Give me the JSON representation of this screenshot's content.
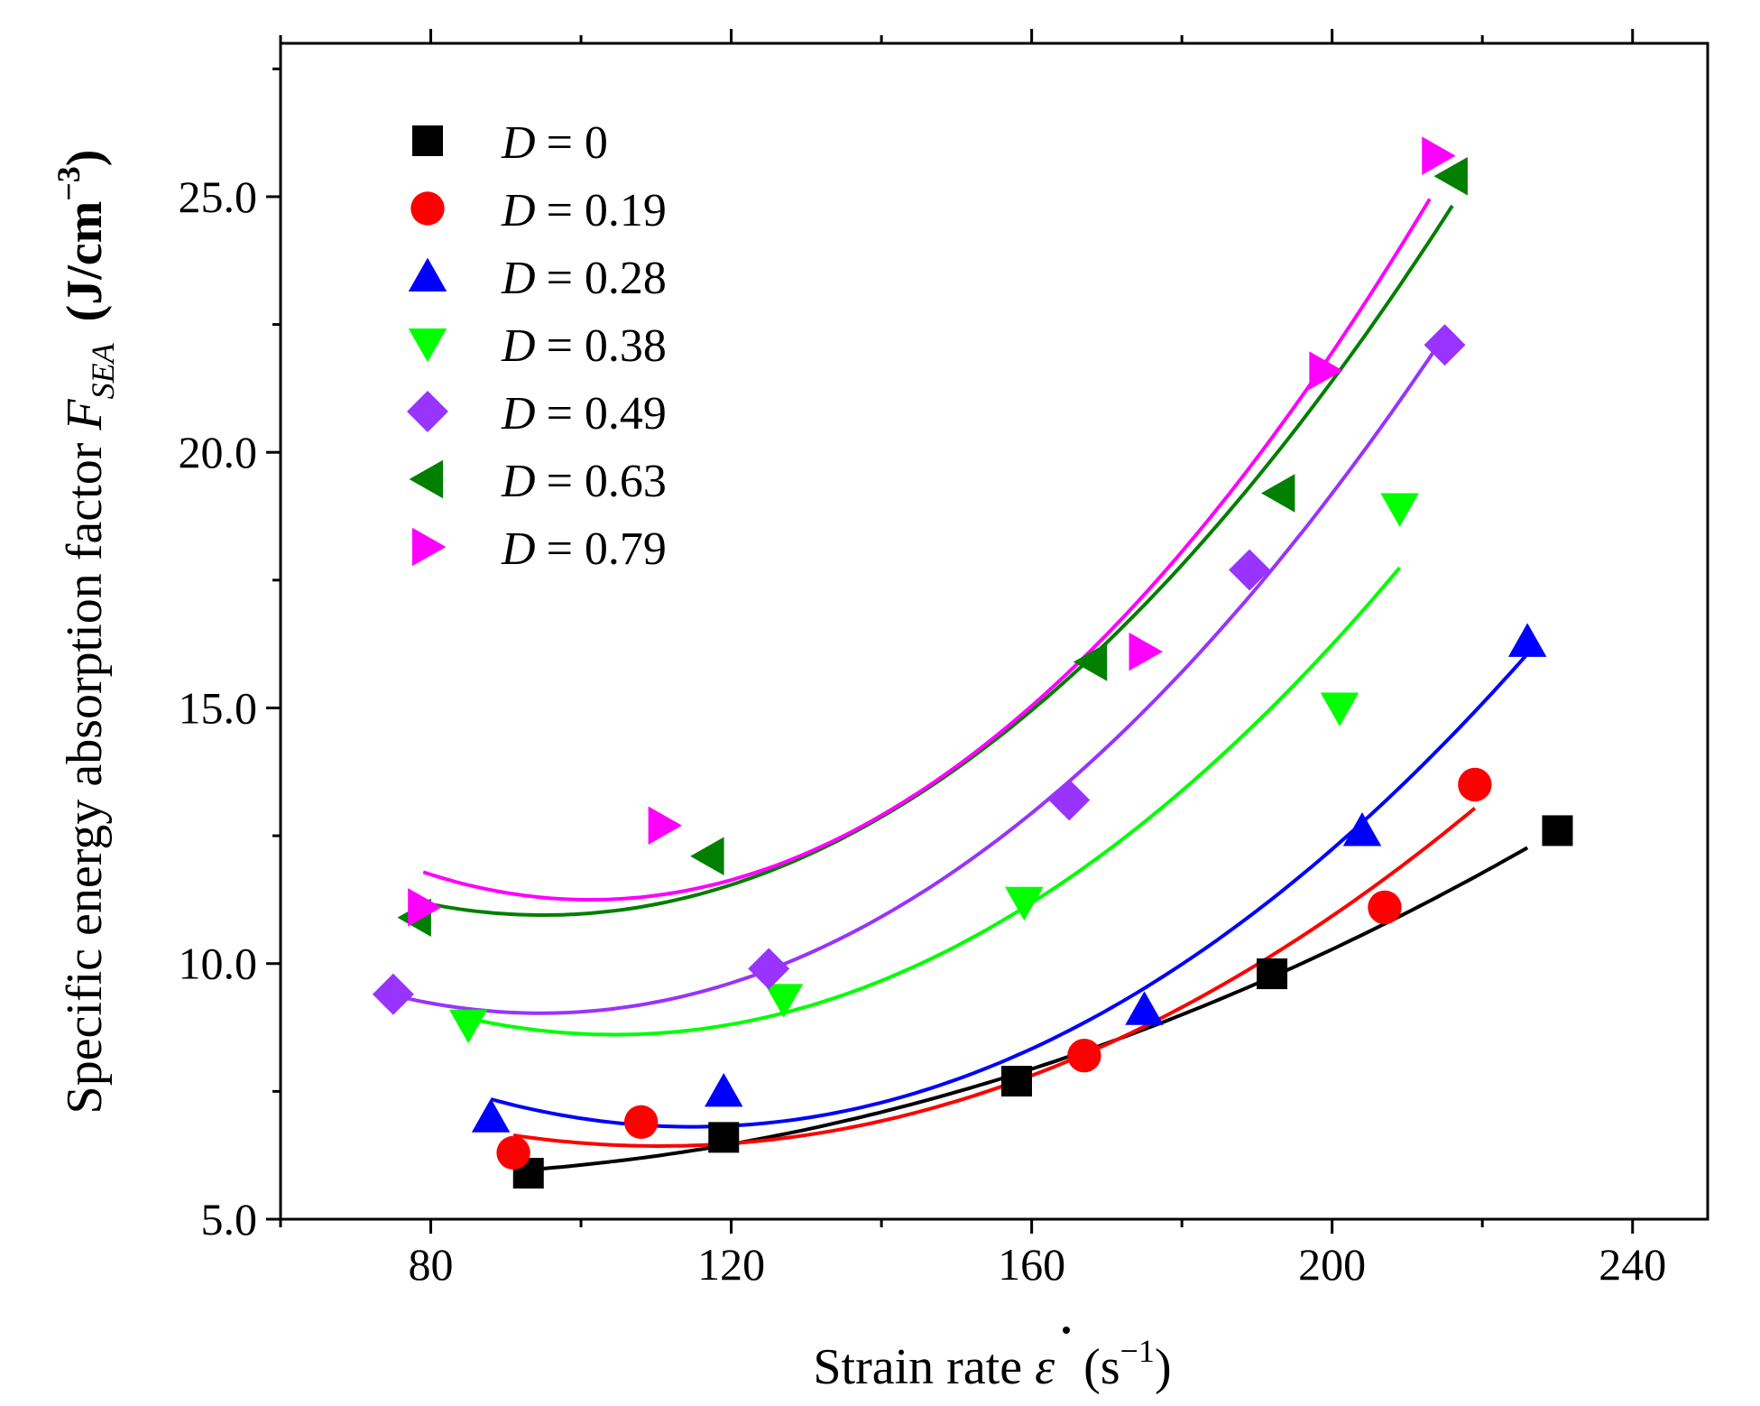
{
  "chart_data": {
    "type": "scatter",
    "xlabel_main": "Strain rate",
    "xlabel_symbol": "ε",
    "xlabel_unit_open": "(s",
    "xlabel_unit_exp": "−1",
    "xlabel_unit_close": ")",
    "ylabel_main": "Specific energy absorption factor",
    "ylabel_symbol": "F",
    "ylabel_subscript": "SEA",
    "ylabel_unit_open": "(J/cm",
    "ylabel_unit_exp": "−3",
    "ylabel_unit_close": ")",
    "xlim": [
      60,
      250
    ],
    "ylim": [
      5.0,
      28.0
    ],
    "xticks": [
      80,
      120,
      160,
      200,
      240
    ],
    "xtick_labels": [
      "80",
      "120",
      "160",
      "200",
      "240"
    ],
    "yticks": [
      5.0,
      10.0,
      15.0,
      20.0,
      25.0
    ],
    "ytick_labels": [
      "5.0",
      "10.0",
      "15.0",
      "20.0",
      "25.0"
    ],
    "grid": false,
    "legend_position": "top-left",
    "series": [
      {
        "name_prefix": "D",
        "name_value": "= 0",
        "marker": "square",
        "color": "#000000",
        "points": [
          [
            93,
            5.9
          ],
          [
            119,
            6.6
          ],
          [
            158,
            7.7
          ],
          [
            192,
            9.8
          ],
          [
            230,
            12.6
          ]
        ],
        "fit_range": [
          93,
          226
        ]
      },
      {
        "name_prefix": "D",
        "name_value": "= 0.19",
        "marker": "circle",
        "color": "#ff0000",
        "points": [
          [
            91,
            6.3
          ],
          [
            108,
            6.9
          ],
          [
            167,
            8.2
          ],
          [
            207,
            11.1
          ],
          [
            219,
            13.5
          ]
        ],
        "fit_range": [
          91,
          219
        ]
      },
      {
        "name_prefix": "D",
        "name_value": "= 0.28",
        "marker": "triangle-up",
        "color": "#0000ff",
        "points": [
          [
            88,
            7.0
          ],
          [
            119,
            7.5
          ],
          [
            175,
            9.1
          ],
          [
            204,
            12.6
          ],
          [
            226,
            16.3
          ]
        ],
        "fit_range": [
          88,
          226
        ]
      },
      {
        "name_prefix": "D",
        "name_value": "= 0.38",
        "marker": "triangle-down",
        "color": "#00ff00",
        "points": [
          [
            85,
            8.8
          ],
          [
            127,
            9.3
          ],
          [
            159,
            11.2
          ],
          [
            201,
            15.0
          ],
          [
            209,
            18.9
          ]
        ],
        "fit_range": [
          85,
          209
        ]
      },
      {
        "name_prefix": "D",
        "name_value": "= 0.49",
        "marker": "diamond",
        "color": "#9933ff",
        "points": [
          [
            75,
            9.4
          ],
          [
            125,
            9.9
          ],
          [
            165,
            13.2
          ],
          [
            189,
            17.7
          ],
          [
            215,
            22.1
          ]
        ],
        "fit_range": [
          75,
          215
        ]
      },
      {
        "name_prefix": "D",
        "name_value": "= 0.63",
        "marker": "triangle-left",
        "color": "#007f00",
        "points": [
          [
            78,
            10.9
          ],
          [
            117,
            12.1
          ],
          [
            168,
            15.9
          ],
          [
            193,
            19.2
          ],
          [
            216,
            25.4
          ]
        ],
        "fit_range": [
          78,
          216
        ]
      },
      {
        "name_prefix": "D",
        "name_value": "= 0.79",
        "marker": "triangle-right",
        "color": "#ff00ff",
        "points": [
          [
            79,
            11.1
          ],
          [
            111,
            12.7
          ],
          [
            175,
            16.1
          ],
          [
            199,
            21.6
          ],
          [
            214,
            25.8
          ]
        ],
        "fit_range": [
          79,
          213
        ]
      }
    ]
  }
}
